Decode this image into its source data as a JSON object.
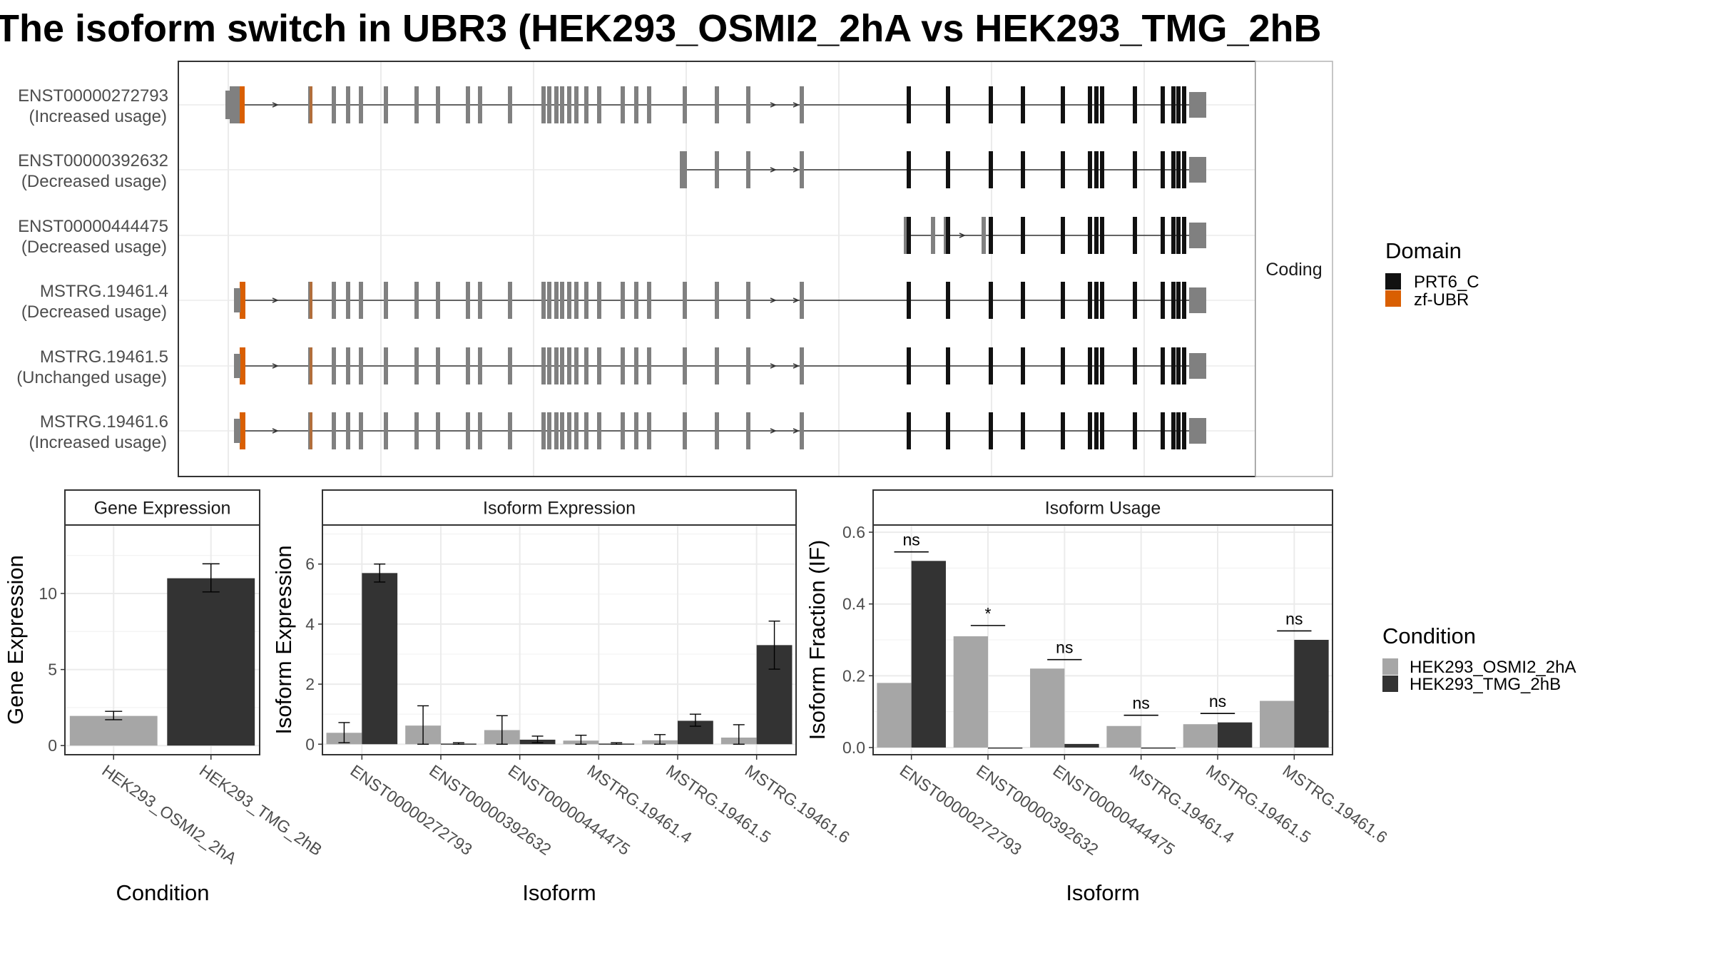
{
  "title": "The isoform switch in UBR3 (HEK293_OSMI2_2hA vs HEK293_TMG_2hB",
  "colors": {
    "cond_a": "#a6a6a6",
    "cond_b": "#333333",
    "prt6c": "#111111",
    "zfubr": "#d95f02",
    "exon": "#808080",
    "grid": "#ebebeb",
    "strip": "#ffffff",
    "panel_border": "#333333"
  },
  "structure": {
    "strip_label": "Coding",
    "transcripts": [
      {
        "name": "ENST00000272793",
        "label": "(Increased usage)"
      },
      {
        "name": "ENST00000392632",
        "label": "(Decreased usage)"
      },
      {
        "name": "ENST00000444475",
        "label": "(Decreased usage)"
      },
      {
        "name": "MSTRG.19461.4",
        "label": "(Decreased usage)"
      },
      {
        "name": "MSTRG.19461.5",
        "label": "(Unchanged usage)"
      },
      {
        "name": "MSTRG.19461.6",
        "label": "(Increased usage)"
      }
    ]
  },
  "legend_domain": {
    "title": "Domain",
    "items": [
      {
        "label": "PRT6_C",
        "color": "#111111"
      },
      {
        "label": "zf-UBR",
        "color": "#d95f02"
      }
    ]
  },
  "legend_condition": {
    "title": "Condition",
    "items": [
      {
        "label": "HEK293_OSMI2_2hA",
        "color": "#a6a6a6"
      },
      {
        "label": "HEK293_TMG_2hB",
        "color": "#333333"
      }
    ]
  },
  "chart_data": [
    {
      "type": "bar",
      "panel": "Gene Expression",
      "xlabel": "Condition",
      "ylabel": "Gene Expression",
      "categories": [
        "HEK293_OSMI2_2hA",
        "HEK293_TMG_2hB"
      ],
      "values": [
        1.95,
        11.0
      ],
      "error_low": [
        1.7,
        10.1
      ],
      "error_high": [
        2.25,
        11.95
      ],
      "yticks": [
        0,
        5,
        10
      ],
      "ylim": [
        -0.6,
        14.5
      ],
      "grid": true
    },
    {
      "type": "bar",
      "panel": "Isoform Expression",
      "xlabel": "Isoform",
      "ylabel": "Isoform Expression",
      "categories": [
        "ENST00000272793",
        "ENST00000392632",
        "ENST00000444475",
        "MSTRG.19461.4",
        "MSTRG.19461.5",
        "MSTRG.19461.6"
      ],
      "series": [
        {
          "name": "HEK293_OSMI2_2hA",
          "values": [
            0.38,
            0.62,
            0.47,
            0.12,
            0.13,
            0.22
          ],
          "error_low": [
            0.05,
            0.0,
            0.0,
            0.0,
            0.0,
            0.0
          ],
          "error_high": [
            0.72,
            1.28,
            0.95,
            0.3,
            0.32,
            0.65
          ]
        },
        {
          "name": "HEK293_TMG_2hB",
          "values": [
            5.7,
            0.02,
            0.15,
            0.02,
            0.78,
            3.3
          ],
          "error_low": [
            5.4,
            0.0,
            0.05,
            0.0,
            0.6,
            2.5
          ],
          "error_high": [
            6.0,
            0.05,
            0.27,
            0.05,
            1.0,
            4.1
          ]
        }
      ],
      "yticks": [
        0,
        2,
        4,
        6
      ],
      "ylim": [
        -0.35,
        7.3
      ],
      "grid": true
    },
    {
      "type": "bar",
      "panel": "Isoform Usage",
      "xlabel": "Isoform",
      "ylabel": "Isoform Fraction (IF)",
      "categories": [
        "ENST00000272793",
        "ENST00000392632",
        "ENST00000444475",
        "MSTRG.19461.4",
        "MSTRG.19461.5",
        "MSTRG.19461.6"
      ],
      "series": [
        {
          "name": "HEK293_OSMI2_2hA",
          "values": [
            0.18,
            0.31,
            0.22,
            0.06,
            0.065,
            0.13
          ]
        },
        {
          "name": "HEK293_TMG_2hB",
          "values": [
            0.52,
            0.0,
            0.01,
            0.0,
            0.07,
            0.3
          ]
        }
      ],
      "significance": [
        "ns",
        "*",
        "ns",
        "ns",
        "ns",
        "ns"
      ],
      "sig_y": [
        0.545,
        0.34,
        0.245,
        0.09,
        0.095,
        0.325
      ],
      "yticks": [
        0.0,
        0.2,
        0.4,
        0.6
      ],
      "ytick_labels": [
        "0.0",
        "0.2",
        "0.4",
        "0.6"
      ],
      "ylim": [
        -0.02,
        0.62
      ],
      "grid": true
    }
  ]
}
